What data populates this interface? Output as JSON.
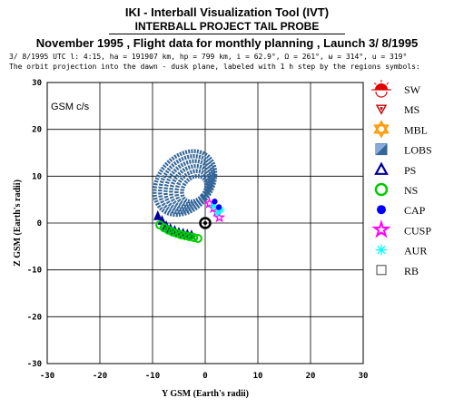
{
  "header": {
    "title": "IKI - Interball Visualization Tool (IVT)",
    "subtitle": "INTERBALL PROJECT TAIL PROBE",
    "line3": "November 1995 ,  Flight data for monthly planning ,   Launch  3/ 8/1995",
    "info1": "3/ 8/1995 UTC  l: 4:15, ha = 191907 km, hp =    799 km, i = 62.9°, Ω = 261°, ω = 314°, u = 319°",
    "info2": "The orbit projection into the dawn - dusk plane, labeled with 1 h step by the regions symbols:"
  },
  "chart_data": {
    "type": "scatter",
    "annotation": "GSM c/s",
    "xlabel": "Y GSM (Earth's radii)",
    "ylabel": "Z GSM (Earth's radii)",
    "xlim": [
      -30,
      30
    ],
    "ylim": [
      -30,
      30
    ],
    "xticks": [
      -30,
      -20,
      -10,
      0,
      10,
      20,
      30
    ],
    "yticks": [
      -30,
      -20,
      -10,
      0,
      10,
      20,
      30
    ],
    "grid": true,
    "legend_position": "right",
    "colors": {
      "SW": "#e00000",
      "MS": "#c00000",
      "MBL": "#ff9900",
      "LOBS": "#336699",
      "PS": "#000099",
      "NS": "#00cc00",
      "CAP": "#0000ff",
      "CUSP": "#ff00ff",
      "AUR": "#00ffff",
      "RB": "#444444"
    },
    "legend": [
      {
        "label": "SW",
        "icon": "sun-icon"
      },
      {
        "label": "MS",
        "icon": "triangle-down-icon"
      },
      {
        "label": "MBL",
        "icon": "star-of-david-icon"
      },
      {
        "label": "LOBS",
        "icon": "split-square-icon"
      },
      {
        "label": "PS",
        "icon": "triangle-up-icon"
      },
      {
        "label": "NS",
        "icon": "circle-icon"
      },
      {
        "label": "CAP",
        "icon": "filled-dot-icon"
      },
      {
        "label": "CUSP",
        "icon": "star-icon"
      },
      {
        "label": "AUR",
        "icon": "asterisk-icon"
      },
      {
        "label": "RB",
        "icon": "square-icon"
      }
    ],
    "series": [
      {
        "name": "LOBS",
        "ellipse": {
          "cx": -2.8,
          "cy": 7.8,
          "rx": 5.0,
          "ry": 7.5,
          "rotation": 40
        },
        "loops": 6
      },
      {
        "name": "PS",
        "x": [
          -9,
          -8.2,
          -7.4,
          -6.6,
          -5.8,
          -5,
          -4.2,
          -3.4,
          -2.6
        ],
        "y": [
          1.5,
          0.5,
          -0.6,
          -1.2,
          -1.6,
          -2,
          -2.2,
          -2.4,
          -2.6
        ]
      },
      {
        "name": "NS",
        "x": [
          -8.6,
          -7.8,
          -7,
          -6.2,
          -5.4,
          -4.6,
          -3.8,
          -3,
          -2.2,
          -1.4
        ],
        "y": [
          -0.4,
          -1,
          -1.5,
          -1.9,
          -2.2,
          -2.5,
          -2.7,
          -2.9,
          -3.1,
          -3.3
        ]
      },
      {
        "name": "CUSP",
        "x": [
          0.8,
          1.6,
          2.2,
          2.7
        ],
        "y": [
          4.2,
          3.2,
          2.4,
          1.2
        ]
      },
      {
        "name": "AUR",
        "x": [
          1.6,
          2.4,
          3
        ],
        "y": [
          3.6,
          2.2,
          2.8
        ]
      },
      {
        "name": "CAP",
        "x": [
          1.8,
          2.6
        ],
        "y": [
          4.6,
          3.4
        ]
      }
    ],
    "earth": {
      "x": 0,
      "y": 0
    }
  }
}
